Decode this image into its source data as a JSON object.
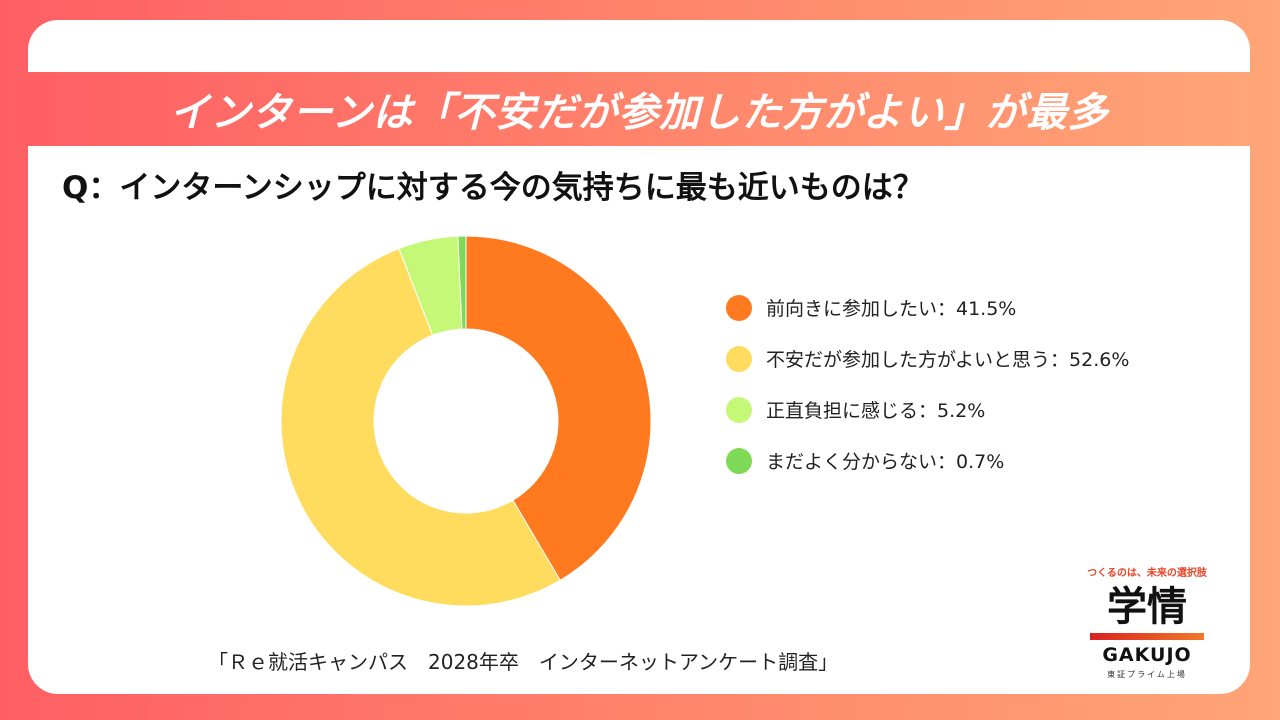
{
  "banner": {
    "title": "インターンは「不安だが参加した方がよい」が最多"
  },
  "question": "Q：インターンシップに対する今の気持ちに最も近いものは？",
  "chart_data": {
    "type": "pie",
    "donut": true,
    "categories": [
      "前向きに参加したい",
      "不安だが参加した方がよいと思う",
      "正直負担に感じる",
      "まだよく分からない"
    ],
    "values": [
      41.5,
      52.6,
      5.2,
      0.7
    ],
    "unit": "%",
    "colors": [
      "#ff7a1f",
      "#ffdc5e",
      "#c6f878",
      "#7ed957"
    ],
    "legend_labels": [
      "前向きに参加したい：41.5%",
      "不安だが参加した方がよいと思う：52.6%",
      "正直負担に感じる：5.2%",
      "まだよく分からない：0.7%"
    ],
    "legend_position": "right"
  },
  "source": "「Ｒｅ就活キャンパス　2028年卒　インターネットアンケート調査」",
  "logo": {
    "tagline": "つくるのは、未来の選択肢",
    "kanji": "学情",
    "en": "GAKUJO",
    "sub": "東証プライム上場"
  }
}
